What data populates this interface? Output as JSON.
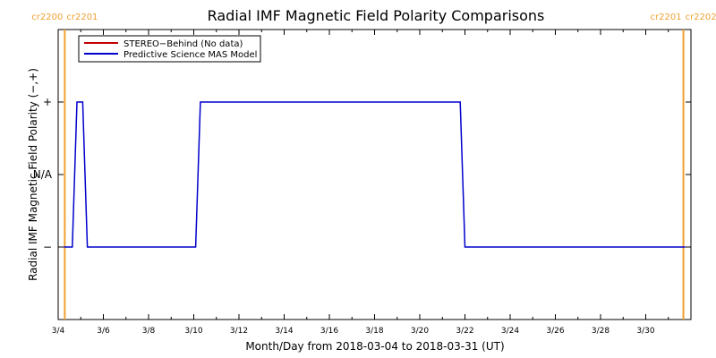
{
  "chart_data": {
    "type": "line",
    "title": "Radial IMF Magnetic Field Polarity Comparisons",
    "xlabel": "Month/Day from 2018-03-04 to 2018-03-31 (UT)",
    "ylabel": "Radial IMF Magnetic Field Polarity (−,+)",
    "x_range": [
      "2018-03-04",
      "2018-03-31"
    ],
    "x_ticks": [
      {
        "date": "2018-03-04",
        "label": "3/4"
      },
      {
        "date": "2018-03-06",
        "label": "3/6"
      },
      {
        "date": "2018-03-08",
        "label": "3/8"
      },
      {
        "date": "2018-03-10",
        "label": "3/10"
      },
      {
        "date": "2018-03-12",
        "label": "3/12"
      },
      {
        "date": "2018-03-14",
        "label": "3/14"
      },
      {
        "date": "2018-03-16",
        "label": "3/16"
      },
      {
        "date": "2018-03-18",
        "label": "3/18"
      },
      {
        "date": "2018-03-20",
        "label": "3/20"
      },
      {
        "date": "2018-03-22",
        "label": "3/22"
      },
      {
        "date": "2018-03-24",
        "label": "3/24"
      },
      {
        "date": "2018-03-26",
        "label": "3/26"
      },
      {
        "date": "2018-03-28",
        "label": "3/28"
      },
      {
        "date": "2018-03-30",
        "label": "3/30"
      }
    ],
    "y_levels": [
      {
        "value": 1,
        "label": "+"
      },
      {
        "value": 0,
        "label": "N/A"
      },
      {
        "value": -1,
        "label": "−"
      }
    ],
    "ylim": [
      -2,
      2
    ],
    "grid": false,
    "legend_position": "top-left",
    "series": [
      {
        "name": "STEREO−Behind (No data)",
        "color": "#c00000",
        "points": []
      },
      {
        "name": "Predictive Science MAS Model",
        "color": "#0000cc",
        "points": [
          {
            "x": "2018-03-04T06:00",
            "y": -1
          },
          {
            "x": "2018-03-04T15:00",
            "y": -1
          },
          {
            "x": "2018-03-04T20:00",
            "y": 1
          },
          {
            "x": "2018-03-05T02:00",
            "y": 1
          },
          {
            "x": "2018-03-05T07:00",
            "y": -1
          },
          {
            "x": "2018-03-10T02:00",
            "y": -1
          },
          {
            "x": "2018-03-10T07:00",
            "y": 1
          },
          {
            "x": "2018-03-21T19:00",
            "y": 1
          },
          {
            "x": "2018-03-22T00:00",
            "y": -1
          },
          {
            "x": "2018-03-31T18:00",
            "y": -1
          }
        ]
      }
    ],
    "carrington_markers": [
      {
        "date": "2018-03-04T07:00",
        "left_label": "cr2200",
        "right_label": "cr2201",
        "color": "#f0a030"
      },
      {
        "date": "2018-03-31T16:00",
        "left_label": "cr2201",
        "right_label": "cr2202",
        "color": "#f0a030"
      }
    ]
  }
}
